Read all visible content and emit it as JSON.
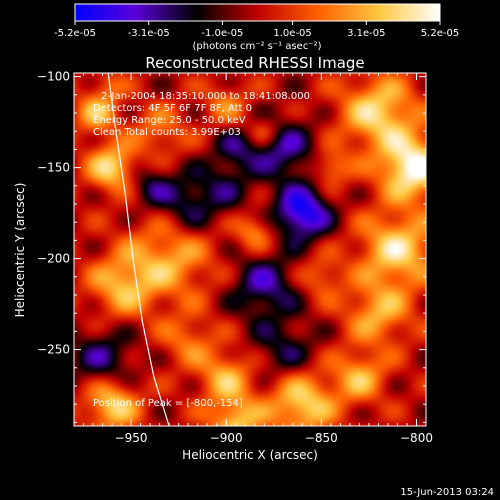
{
  "colorbar": {
    "tick_labels": [
      "-5.2e-05",
      "-3.1e-05",
      "-1.0e-05",
      "1.0e-05",
      "3.1e-05",
      "5.2e-05"
    ],
    "tick_values": [
      -5.2e-05,
      -3.1e-05,
      -1e-05,
      1e-05,
      3.1e-05,
      5.2e-05
    ],
    "range": [
      -5.2e-05,
      5.2e-05
    ],
    "units_label": "(photons cm⁻² s⁻¹ asec⁻²)",
    "colormap": [
      "#0000ff",
      "#5a00d8",
      "#000000",
      "#c00000",
      "#ff6000",
      "#ffc840",
      "#ffffff"
    ]
  },
  "chart_data": {
    "type": "heatmap",
    "title": "Reconstructed RHESSI Image",
    "xlabel": "Heliocentric X (arcsec)",
    "ylabel": "Heliocentric Y (arcsec)",
    "xlim": [
      -980,
      -795
    ],
    "ylim": [
      -292,
      -98
    ],
    "x_ticks": [
      -950,
      -900,
      -850,
      -800
    ],
    "x_tick_labels": [
      "−950",
      "−900",
      "−850",
      "−800"
    ],
    "y_ticks": [
      -250,
      -200,
      -150,
      -100
    ],
    "y_tick_labels": [
      "−250",
      "−200",
      "−150",
      "−100"
    ],
    "info_lines": [
      "2-Jan-2004 18:35:10.000 to 18:41:08.000",
      "Detectors: 4F 5F 6F 7F 8F, Att 0",
      "Energy Range: 25.0 - 50.0 keV",
      "Clean     Total counts: 3.99E+03"
    ],
    "peak_label": "Position of Peak = [-800,-154]",
    "peak_position": [
      -800,
      -154
    ],
    "limb_curve": [
      [
        -962,
        -98
      ],
      [
        -958,
        -130
      ],
      [
        -953,
        -165
      ],
      [
        -949,
        -200
      ],
      [
        -944,
        -235
      ],
      [
        -938,
        -265
      ],
      [
        -930,
        -292
      ]
    ],
    "blobs": [
      {
        "x": -968,
        "y": -120,
        "v": 3e-05,
        "s": 8
      },
      {
        "x": -962,
        "y": -105,
        "v": 1.5e-05,
        "s": 6
      },
      {
        "x": -960,
        "y": -150,
        "v": 4e-05,
        "s": 9
      },
      {
        "x": -935,
        "y": -130,
        "v": 2e-05,
        "s": 10
      },
      {
        "x": -900,
        "y": -115,
        "v": 2e-05,
        "s": 8
      },
      {
        "x": -920,
        "y": -170,
        "v": -2.5e-05,
        "s": 12
      },
      {
        "x": -900,
        "y": -160,
        "v": -1.5e-05,
        "s": 10
      },
      {
        "x": -870,
        "y": -140,
        "v": -3e-05,
        "s": 12
      },
      {
        "x": -860,
        "y": -175,
        "v": -5e-05,
        "s": 10
      },
      {
        "x": -880,
        "y": -130,
        "v": 2e-05,
        "s": 6
      },
      {
        "x": -845,
        "y": -150,
        "v": 2.5e-05,
        "s": 7
      },
      {
        "x": -820,
        "y": -120,
        "v": 4e-05,
        "s": 14
      },
      {
        "x": -802,
        "y": -150,
        "v": 5.2e-05,
        "s": 12
      },
      {
        "x": -810,
        "y": -195,
        "v": 4e-05,
        "s": 14
      },
      {
        "x": -820,
        "y": -230,
        "v": 3e-05,
        "s": 12
      },
      {
        "x": -930,
        "y": -200,
        "v": 3e-05,
        "s": 16
      },
      {
        "x": -955,
        "y": -215,
        "v": 3e-05,
        "s": 12
      },
      {
        "x": -920,
        "y": -245,
        "v": 2e-05,
        "s": 10
      },
      {
        "x": -880,
        "y": -215,
        "v": -3e-05,
        "s": 12
      },
      {
        "x": -870,
        "y": -250,
        "v": -2e-05,
        "s": 12
      },
      {
        "x": -965,
        "y": -255,
        "v": -2.5e-05,
        "s": 12
      },
      {
        "x": -960,
        "y": -280,
        "v": 4e-05,
        "s": 10
      },
      {
        "x": -900,
        "y": -265,
        "v": 3e-05,
        "s": 10
      },
      {
        "x": -860,
        "y": -280,
        "v": 4e-05,
        "s": 12
      },
      {
        "x": -830,
        "y": -265,
        "v": 3e-05,
        "s": 10
      },
      {
        "x": -895,
        "y": -140,
        "v": -2e-05,
        "s": 8
      },
      {
        "x": -850,
        "y": -210,
        "v": 2e-05,
        "s": 8
      },
      {
        "x": -895,
        "y": -290,
        "v": 3.5e-05,
        "s": 10
      },
      {
        "x": -940,
        "y": -160,
        "v": -2e-05,
        "s": 8
      },
      {
        "x": -885,
        "y": -185,
        "v": 2.5e-05,
        "s": 7
      }
    ]
  },
  "footer": {
    "timestamp": "15-Jun-2013 03:24"
  }
}
